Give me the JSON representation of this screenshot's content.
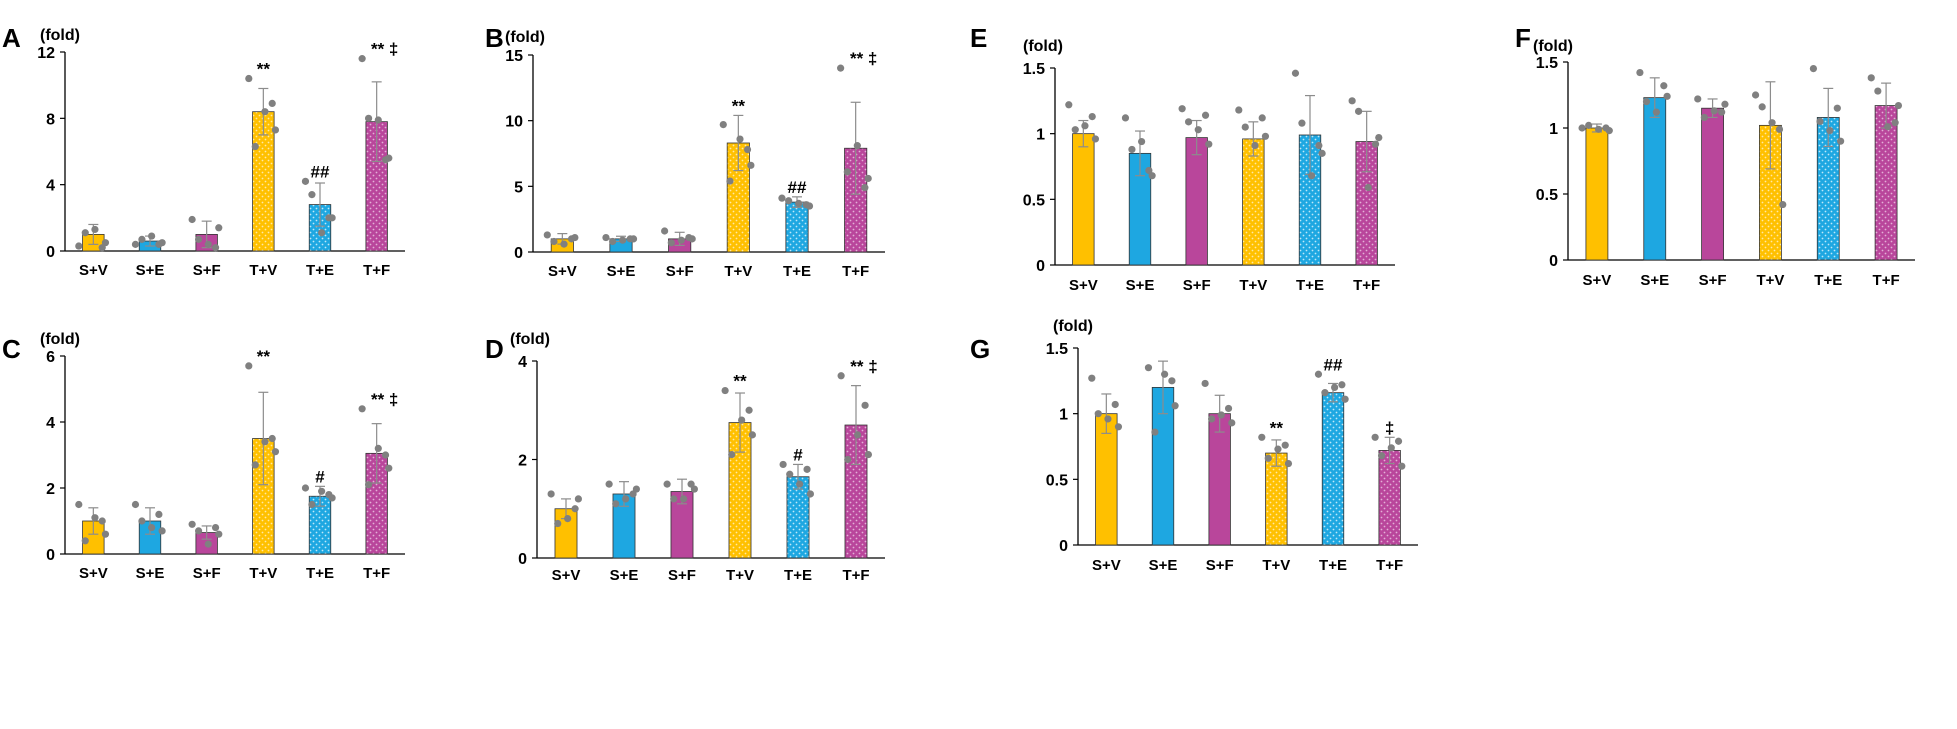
{
  "colors": {
    "V": "#FFC000",
    "E": "#1EA7E1",
    "F": "#B9469B",
    "dot": "#808080",
    "axis": "#000000",
    "error": "#8C8C8C"
  },
  "chart_data": [
    {
      "panel": "A",
      "type": "bar",
      "unit_label": "(fold)",
      "categories": [
        "S+V",
        "S+E",
        "S+F",
        "T+V",
        "T+E",
        "T+F"
      ],
      "groups": [
        "V",
        "E",
        "F",
        "V",
        "E",
        "F"
      ],
      "patterned": [
        false,
        false,
        false,
        true,
        true,
        true
      ],
      "values": [
        1.0,
        0.6,
        1.0,
        8.4,
        2.8,
        7.8
      ],
      "errors": [
        0.6,
        0.3,
        0.8,
        1.4,
        1.3,
        2.4
      ],
      "points": [
        [
          0.3,
          1.3,
          0.5,
          1.1,
          0.2
        ],
        [
          0.4,
          0.9,
          0.5,
          0.7,
          0.4
        ],
        [
          1.9,
          0.4,
          1.4,
          0.7,
          0.2
        ],
        [
          10.4,
          8.4,
          7.3,
          6.3,
          8.9
        ],
        [
          4.2,
          1.1,
          2.0,
          3.4,
          2.0
        ],
        [
          11.6,
          7.9,
          5.6,
          8.0,
          5.5
        ]
      ],
      "annotations": [
        "",
        "",
        "",
        "**",
        "##",
        "** ‡"
      ],
      "ylim": [
        0,
        12
      ],
      "yticks": [
        0,
        4,
        8,
        12
      ],
      "ytick_labels": [
        "0",
        "4",
        "8",
        "12"
      ]
    },
    {
      "panel": "B",
      "type": "bar",
      "unit_label": "(fold)",
      "categories": [
        "S+V",
        "S+E",
        "S+F",
        "T+V",
        "T+E",
        "T+F"
      ],
      "groups": [
        "V",
        "E",
        "F",
        "V",
        "E",
        "F"
      ],
      "patterned": [
        false,
        false,
        false,
        true,
        true,
        true
      ],
      "values": [
        1.0,
        1.0,
        1.0,
        8.3,
        3.8,
        7.9
      ],
      "errors": [
        0.4,
        0.2,
        0.5,
        2.1,
        0.4,
        3.5
      ],
      "points": [
        [
          1.3,
          0.6,
          1.1,
          0.8,
          1.0
        ],
        [
          1.1,
          0.9,
          1.0,
          0.8,
          1.0
        ],
        [
          1.6,
          0.9,
          1.0,
          0.7,
          1.1
        ],
        [
          9.7,
          8.6,
          6.6,
          5.4,
          7.8
        ],
        [
          4.1,
          3.7,
          3.5,
          3.9,
          3.6
        ],
        [
          14.0,
          8.1,
          5.6,
          6.1,
          4.9
        ]
      ],
      "annotations": [
        "",
        "",
        "",
        "**",
        "##",
        "** ‡"
      ],
      "ylim": [
        0,
        15
      ],
      "yticks": [
        0,
        5,
        10,
        15
      ],
      "ytick_labels": [
        "0",
        "5",
        "10",
        "15"
      ]
    },
    {
      "panel": "C",
      "type": "bar",
      "unit_label": "(fold)",
      "categories": [
        "S+V",
        "S+E",
        "S+F",
        "T+V",
        "T+E",
        "T+F"
      ],
      "groups": [
        "V",
        "E",
        "F",
        "V",
        "E",
        "F"
      ],
      "patterned": [
        false,
        false,
        false,
        true,
        true,
        true
      ],
      "values": [
        1.0,
        1.0,
        0.65,
        3.5,
        1.75,
        3.05
      ],
      "errors": [
        0.4,
        0.4,
        0.2,
        1.4,
        0.3,
        0.9
      ],
      "points": [
        [
          1.5,
          1.1,
          0.6,
          0.4,
          1.0
        ],
        [
          1.5,
          0.8,
          0.7,
          1.0,
          1.2
        ],
        [
          0.9,
          0.3,
          0.6,
          0.7,
          0.8
        ],
        [
          5.7,
          3.4,
          3.1,
          2.7,
          3.5
        ],
        [
          2.0,
          1.9,
          1.7,
          1.5,
          1.8
        ],
        [
          4.4,
          3.2,
          2.6,
          2.1,
          3.0
        ]
      ],
      "annotations": [
        "",
        "",
        "",
        "**",
        "#",
        "** ‡"
      ],
      "ylim": [
        0,
        6
      ],
      "yticks": [
        0,
        2,
        4,
        6
      ],
      "ytick_labels": [
        "0",
        "2",
        "4",
        "6"
      ]
    },
    {
      "panel": "D",
      "type": "bar",
      "unit_label": "(fold)",
      "categories": [
        "S+V",
        "S+E",
        "S+F",
        "T+V",
        "T+E",
        "T+F"
      ],
      "groups": [
        "V",
        "E",
        "F",
        "V",
        "E",
        "F"
      ],
      "patterned": [
        false,
        false,
        false,
        true,
        true,
        true
      ],
      "values": [
        1.0,
        1.3,
        1.35,
        2.75,
        1.65,
        2.7
      ],
      "errors": [
        0.2,
        0.25,
        0.25,
        0.6,
        0.25,
        0.8
      ],
      "points": [
        [
          1.3,
          0.8,
          1.2,
          0.7,
          1.0
        ],
        [
          1.5,
          1.2,
          1.4,
          1.1,
          1.3
        ],
        [
          1.5,
          1.2,
          1.4,
          1.2,
          1.5
        ],
        [
          3.4,
          2.8,
          2.5,
          2.1,
          3.0
        ],
        [
          1.9,
          1.5,
          1.3,
          1.7,
          1.8
        ],
        [
          3.7,
          2.5,
          2.1,
          2.0,
          3.1
        ]
      ],
      "annotations": [
        "",
        "",
        "",
        "**",
        "#",
        "** ‡"
      ],
      "ylim": [
        0,
        4
      ],
      "yticks": [
        0,
        2,
        4
      ],
      "ytick_labels": [
        "0",
        "2",
        "4"
      ]
    },
    {
      "panel": "E",
      "type": "bar",
      "unit_label": "(fold)",
      "categories": [
        "S+V",
        "S+E",
        "S+F",
        "T+V",
        "T+E",
        "T+F"
      ],
      "groups": [
        "V",
        "E",
        "F",
        "V",
        "E",
        "F"
      ],
      "patterned": [
        false,
        false,
        false,
        true,
        true,
        true
      ],
      "values": [
        1.0,
        0.85,
        0.97,
        0.96,
        0.99,
        0.94
      ],
      "errors": [
        0.1,
        0.17,
        0.13,
        0.13,
        0.3,
        0.23
      ],
      "points": [
        [
          1.22,
          1.06,
          0.96,
          1.03,
          1.13
        ],
        [
          1.12,
          0.94,
          0.68,
          0.88,
          0.72
        ],
        [
          1.19,
          1.03,
          0.92,
          1.09,
          1.14
        ],
        [
          1.18,
          0.91,
          0.98,
          1.05,
          1.12
        ],
        [
          1.46,
          0.68,
          0.85,
          1.08,
          0.91
        ],
        [
          1.25,
          0.59,
          0.97,
          1.17,
          0.92
        ]
      ],
      "annotations": [
        "",
        "",
        "",
        "",
        "",
        ""
      ],
      "ylim": [
        0,
        1.5
      ],
      "yticks": [
        0,
        0.5,
        1,
        1.5
      ],
      "ytick_labels": [
        "0",
        "0.5",
        "1",
        "1.5"
      ]
    },
    {
      "panel": "F",
      "type": "bar",
      "unit_label": "(fold)",
      "categories": [
        "S+V",
        "S+E",
        "S+F",
        "T+V",
        "T+E",
        "T+F"
      ],
      "groups": [
        "V",
        "E",
        "F",
        "V",
        "E",
        "F"
      ],
      "patterned": [
        false,
        false,
        false,
        true,
        true,
        true
      ],
      "values": [
        1.0,
        1.23,
        1.15,
        1.02,
        1.08,
        1.17
      ],
      "errors": [
        0.03,
        0.15,
        0.07,
        0.33,
        0.22,
        0.17
      ],
      "points": [
        [
          1.0,
          0.99,
          0.98,
          1.02,
          1.0
        ],
        [
          1.42,
          1.12,
          1.24,
          1.2,
          1.32
        ],
        [
          1.22,
          1.13,
          1.18,
          1.08,
          1.12
        ],
        [
          1.25,
          1.04,
          0.42,
          1.16,
          0.99
        ],
        [
          1.45,
          0.98,
          0.9,
          1.05,
          1.15
        ],
        [
          1.38,
          1.01,
          1.17,
          1.28,
          1.04
        ]
      ],
      "annotations": [
        "",
        "",
        "",
        "",
        "",
        ""
      ],
      "ylim": [
        0,
        1.5
      ],
      "yticks": [
        0,
        0.5,
        1,
        1.5
      ],
      "ytick_labels": [
        "0",
        "0.5",
        "1",
        "1.5"
      ]
    },
    {
      "panel": "G",
      "type": "bar",
      "unit_label": "(fold)",
      "categories": [
        "S+V",
        "S+E",
        "S+F",
        "T+V",
        "T+E",
        "T+F"
      ],
      "groups": [
        "V",
        "E",
        "F",
        "V",
        "E",
        "F"
      ],
      "patterned": [
        false,
        false,
        false,
        true,
        true,
        true
      ],
      "values": [
        1.0,
        1.2,
        1.0,
        0.7,
        1.16,
        0.72
      ],
      "errors": [
        0.15,
        0.2,
        0.14,
        0.1,
        0.07,
        0.1
      ],
      "points": [
        [
          1.27,
          0.96,
          0.9,
          1.0,
          1.07
        ],
        [
          1.35,
          1.3,
          1.06,
          0.86,
          1.25
        ],
        [
          1.23,
          0.99,
          0.93,
          0.96,
          1.04
        ],
        [
          0.82,
          0.73,
          0.62,
          0.66,
          0.76
        ],
        [
          1.3,
          1.2,
          1.11,
          1.16,
          1.22
        ],
        [
          0.82,
          0.74,
          0.6,
          0.68,
          0.79
        ]
      ],
      "annotations": [
        "",
        "",
        "",
        "**",
        "##",
        "‡"
      ],
      "ylim": [
        0,
        1.5
      ],
      "yticks": [
        0,
        0.5,
        1,
        1.5
      ],
      "ytick_labels": [
        "0",
        "0.5",
        "1",
        "1.5"
      ]
    }
  ]
}
